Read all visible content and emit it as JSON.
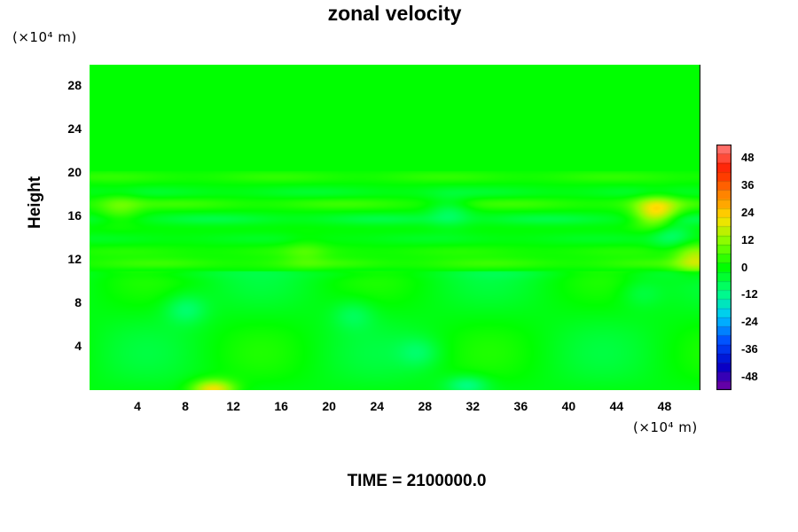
{
  "chart_data": {
    "type": "heatmap",
    "title": "zonal velocity",
    "ylabel": "Height",
    "xunit_label": "(×10⁴ m)",
    "yunit_label": "(×10⁴ m)",
    "footer": "TIME = 2100000.0",
    "xlim": [
      0,
      51
    ],
    "ylim": [
      0,
      30
    ],
    "x_ticks": [
      4,
      8,
      12,
      16,
      20,
      24,
      28,
      32,
      36,
      40,
      44,
      48
    ],
    "y_ticks": [
      4,
      8,
      12,
      16,
      20,
      24,
      28
    ],
    "colorbar": {
      "min": -54,
      "max": 54,
      "step": 4,
      "tick_labels": [
        48,
        36,
        24,
        12,
        0,
        -12,
        -24,
        -36,
        -48
      ]
    },
    "field_description": {
      "background_value": 0,
      "bands": [
        {
          "y_center": 19.7,
          "value": 4
        },
        {
          "y_center": 18.3,
          "value": -4
        },
        {
          "y_center": 17.2,
          "value": 5
        },
        {
          "y_center": 15.8,
          "value": -6
        },
        {
          "y_center": 14.0,
          "value": -3
        },
        {
          "y_center": 12.8,
          "value": 3
        },
        {
          "y_center": 11.7,
          "value": 5
        },
        {
          "y_center": 10.8,
          "value": -2
        }
      ],
      "features": [
        {
          "x": 10.3,
          "y": 0.1,
          "value": 22
        },
        {
          "x": 47.3,
          "y": 16.4,
          "value": 22
        },
        {
          "x": 50.6,
          "y": 12.1,
          "value": 15
        },
        {
          "x": 8.0,
          "y": 7.5,
          "value": -8
        },
        {
          "x": 22.0,
          "y": 7.0,
          "value": -6
        },
        {
          "x": 31.5,
          "y": 0.5,
          "value": -10
        },
        {
          "x": 27.5,
          "y": 3.5,
          "value": -6
        },
        {
          "x": 46.0,
          "y": 9.0,
          "value": -5
        },
        {
          "x": 30.0,
          "y": 16.5,
          "value": -7
        },
        {
          "x": 48.5,
          "y": 14.5,
          "value": -9
        },
        {
          "x": 2.5,
          "y": 16.8,
          "value": 7
        },
        {
          "x": 18.0,
          "y": 12.8,
          "value": 4
        }
      ]
    }
  },
  "colors": {
    "scale": [
      "#7a00a0",
      "#0000c8",
      "#0050ff",
      "#00c8ff",
      "#00ff80",
      "#00ff00",
      "#80ff00",
      "#ffe000",
      "#ff8000",
      "#ff2000",
      "#ff8080"
    ]
  }
}
